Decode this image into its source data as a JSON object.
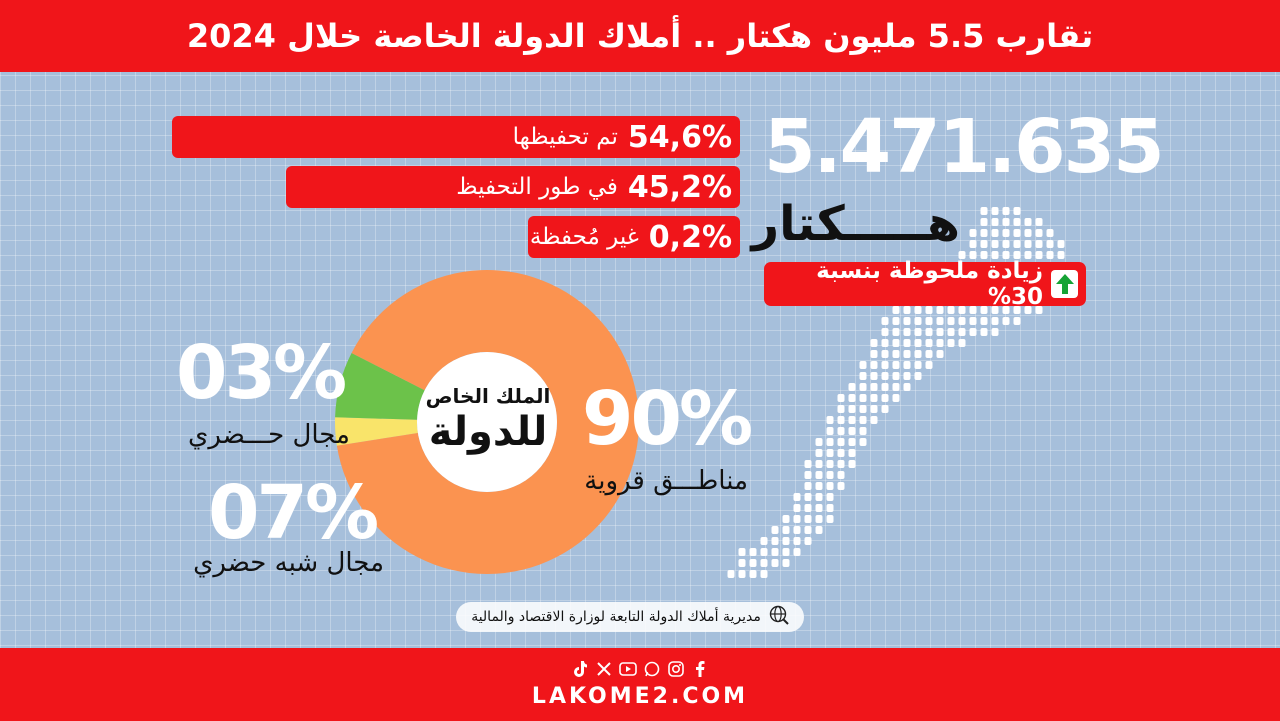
{
  "header": {
    "title": "تقارب 5.5 مليون هكتار .. أملاك الدولة الخاصة خلال 2024"
  },
  "stats": [
    {
      "pct": "54,6%",
      "label": "تم تحفيظها"
    },
    {
      "pct": "45,2%",
      "label": "في طور التحفيظ"
    },
    {
      "pct": "0,2%",
      "label": "غير مُحفظة"
    }
  ],
  "total": {
    "value": "5.471.635",
    "unit": "هـــــكتار"
  },
  "increase": {
    "text": "زيادة ملحوظة بنسبة 30%"
  },
  "donut": {
    "center_line1": "الملك الخاص",
    "center_line2": "للدولة"
  },
  "segments": [
    {
      "pct": "90%",
      "caption": "مناطـــق قروية"
    },
    {
      "pct": "03%",
      "caption": "مجال حـــضري"
    },
    {
      "pct": "07%",
      "caption": "مجال شبه حضري"
    }
  ],
  "chart_data": {
    "type": "pie",
    "title": "الملك الخاص للدولة",
    "categories": [
      "مناطق قروية",
      "مجال حضري",
      "مجال شبه حضري"
    ],
    "values": [
      90,
      3,
      7
    ],
    "colors": [
      "#fb9350",
      "#f9e46a",
      "#6cc24a"
    ]
  },
  "source": {
    "text": "مديرية أملاك الدولة التابعة لوزارة الاقتصاد والمالية"
  },
  "footer": {
    "site": "LAKOME2.COM"
  },
  "colors": {
    "brand_red": "#f0151a",
    "background": "#a6bfdb",
    "arrow_green": "#15a335"
  }
}
